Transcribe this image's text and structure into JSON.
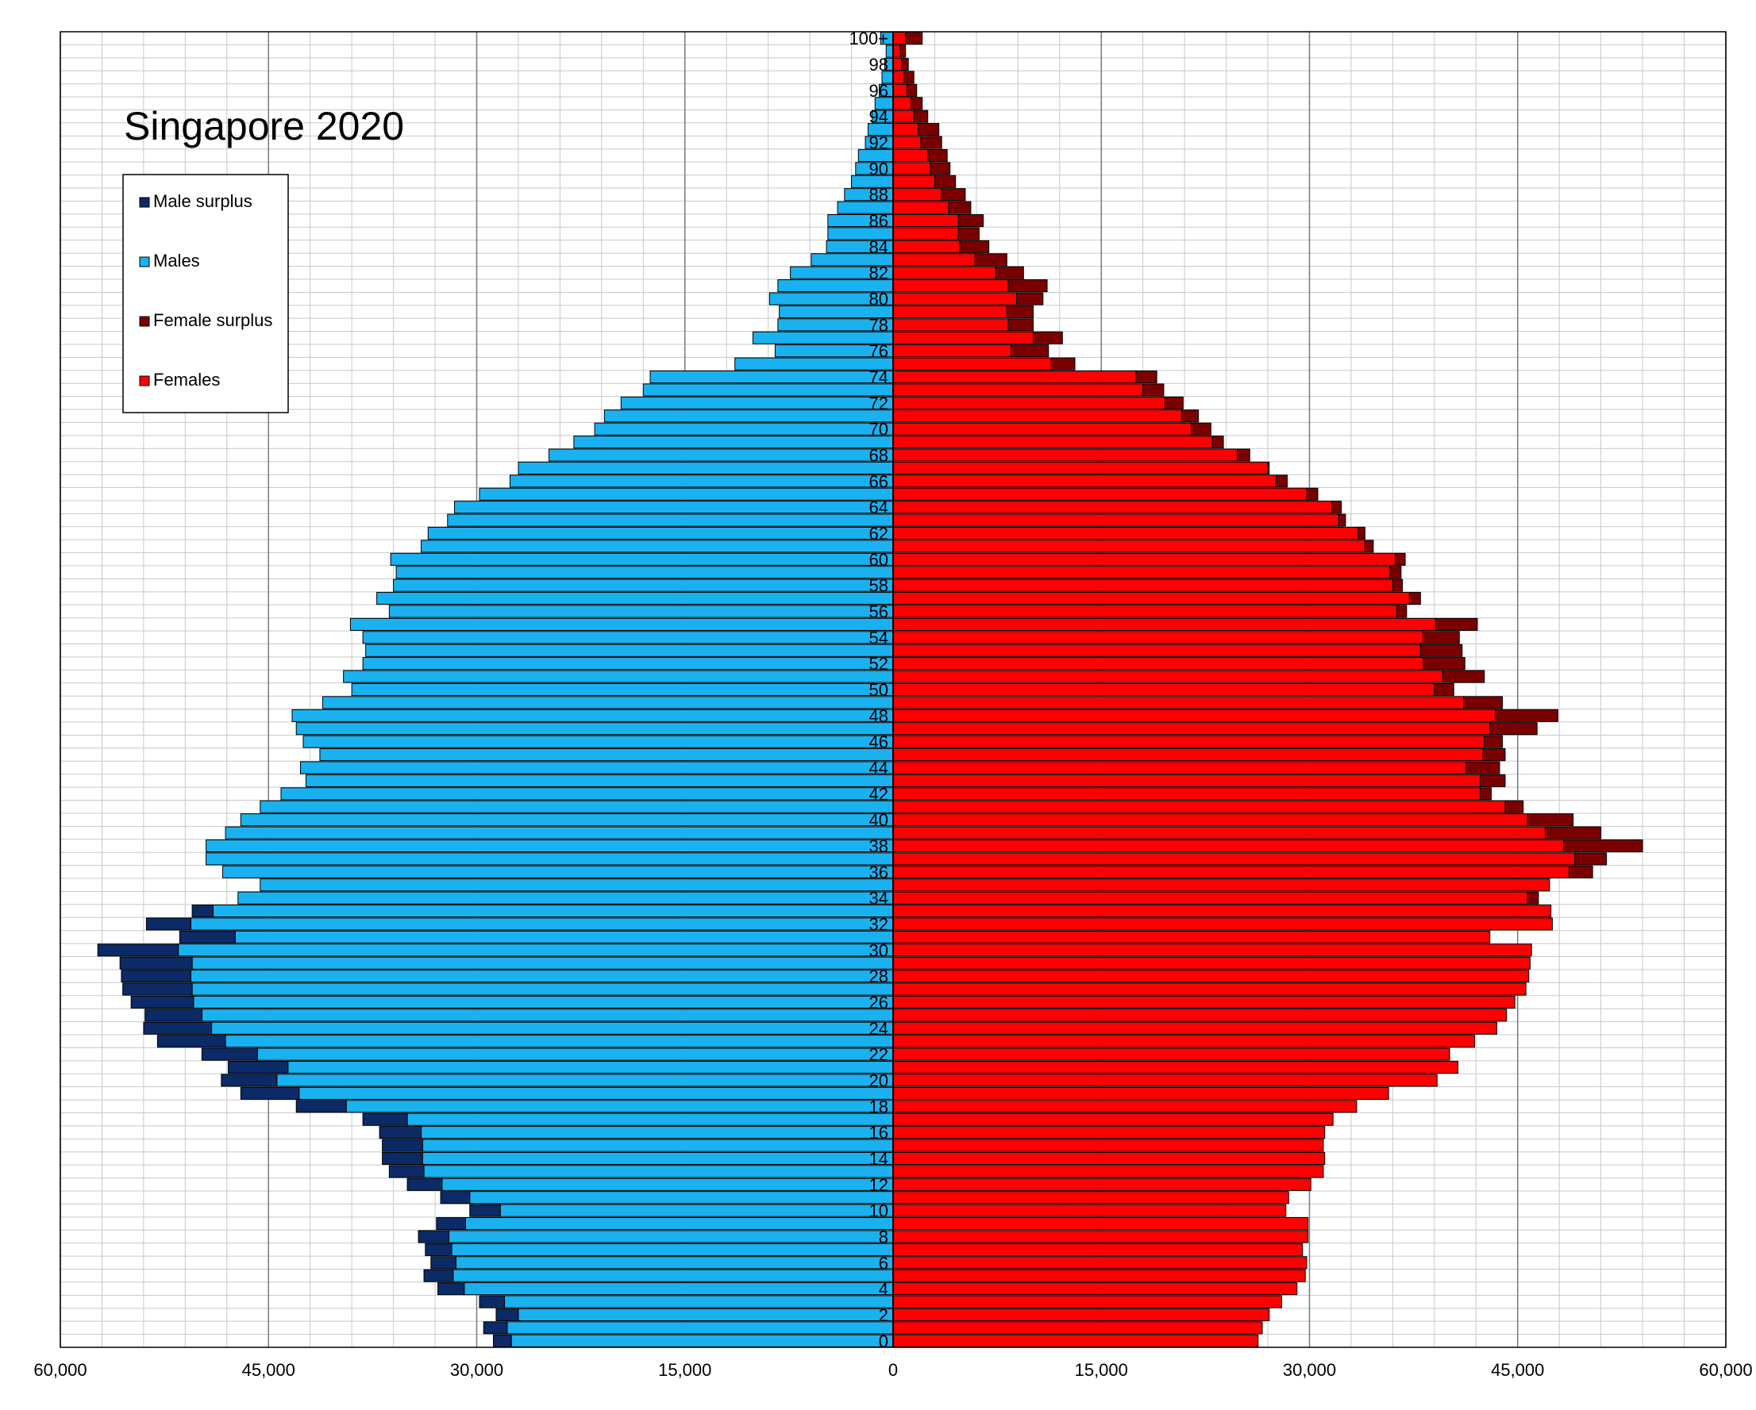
{
  "chart_data": {
    "type": "bar",
    "orientation": "horizontal-population-pyramid",
    "title": "Singapore 2020",
    "xlabel": "",
    "ylabel": "",
    "xlim": [
      -60000,
      60000
    ],
    "x_ticks": [
      "60,000",
      "45,000",
      "30,000",
      "15,000",
      "0",
      "15,000",
      "30,000",
      "45,000",
      "60,000"
    ],
    "grid": true,
    "legend_position": "top-left",
    "legend": [
      "Male surplus",
      "Males",
      "Female surplus",
      "Females"
    ],
    "colors": {
      "male_surplus": "#0b2a66",
      "males": "#1ab1f0",
      "female_surplus": "#7a0000",
      "females": "#ff0000"
    },
    "age_labels": [
      "100+",
      "98",
      "96",
      "94",
      "92",
      "90",
      "88",
      "86",
      "84",
      "82",
      "80",
      "78",
      "76",
      "74",
      "72",
      "70",
      "68",
      "66",
      "64",
      "62",
      "60",
      "58",
      "56",
      "54",
      "52",
      "50",
      "48",
      "46",
      "44",
      "42",
      "40",
      "38",
      "36",
      "34",
      "32",
      "30",
      "28",
      "26",
      "24",
      "22",
      "20",
      "18",
      "16",
      "14",
      "12",
      "10",
      "8",
      "6",
      "4",
      "2",
      "0"
    ],
    "ages": [
      "0",
      "1",
      "2",
      "3",
      "4",
      "5",
      "6",
      "7",
      "8",
      "9",
      "10",
      "11",
      "12",
      "13",
      "14",
      "15",
      "16",
      "17",
      "18",
      "19",
      "20",
      "21",
      "22",
      "23",
      "24",
      "25",
      "26",
      "27",
      "28",
      "29",
      "30",
      "31",
      "32",
      "33",
      "34",
      "35",
      "36",
      "37",
      "38",
      "39",
      "40",
      "41",
      "42",
      "43",
      "44",
      "45",
      "46",
      "47",
      "48",
      "49",
      "50",
      "51",
      "52",
      "53",
      "54",
      "55",
      "56",
      "57",
      "58",
      "59",
      "60",
      "61",
      "62",
      "63",
      "64",
      "65",
      "66",
      "67",
      "68",
      "69",
      "70",
      "71",
      "72",
      "73",
      "74",
      "75",
      "76",
      "77",
      "78",
      "79",
      "80",
      "81",
      "82",
      "83",
      "84",
      "85",
      "86",
      "87",
      "88",
      "89",
      "90",
      "91",
      "92",
      "93",
      "94",
      "95",
      "96",
      "97",
      "98",
      "99",
      "100+"
    ],
    "series": [
      {
        "name": "Males",
        "values": [
          27500,
          27800,
          27000,
          28000,
          30900,
          31700,
          31500,
          31800,
          32000,
          30800,
          28300,
          30500,
          32500,
          33800,
          33900,
          33900,
          34000,
          35000,
          39400,
          42800,
          44400,
          43600,
          45800,
          48100,
          49100,
          49800,
          50400,
          50500,
          50600,
          50500,
          51500,
          47400,
          50600,
          49000,
          47200,
          45600,
          48300,
          49500,
          49500,
          48100,
          47000,
          45600,
          44100,
          42300,
          42700,
          41300,
          42500,
          43000,
          43300,
          41100,
          39000,
          39600,
          38200,
          38000,
          38200,
          39100,
          36300,
          37200,
          36000,
          35800,
          36200,
          34000,
          33500,
          32100,
          31600,
          29800,
          27600,
          27000,
          24800,
          23000,
          21500,
          20800,
          19600,
          18000,
          17500,
          11400,
          8500,
          10100,
          8300,
          8200,
          8900,
          8300,
          7400,
          5900,
          4800,
          4700,
          4700,
          4000,
          3500,
          3000,
          2700,
          2500,
          2000,
          1800,
          1500,
          1300,
          1000,
          800,
          600,
          500,
          900
        ],
        "male_surplus": [
          1300,
          1700,
          1600,
          1800,
          1900,
          2100,
          1800,
          1900,
          2200,
          2100,
          2200,
          2100,
          2500,
          2500,
          2900,
          2900,
          3000,
          3200,
          3600,
          4200,
          4000,
          4300,
          4000,
          4900,
          4900,
          4100,
          4500,
          5000,
          5000,
          5200,
          5800,
          4000,
          3200,
          1500,
          0,
          0,
          0,
          0,
          0,
          0,
          0,
          0,
          0,
          0,
          0,
          0,
          0,
          0,
          0,
          0,
          0,
          0,
          0,
          0,
          0,
          0,
          0,
          0,
          0,
          0,
          0,
          0,
          0,
          0,
          0,
          0,
          0,
          0,
          0,
          0,
          0,
          0,
          0,
          0,
          0,
          0,
          0,
          0,
          0,
          0,
          0,
          0,
          0,
          0,
          0,
          0,
          0,
          0,
          0,
          0,
          0,
          0,
          0,
          0,
          0,
          0,
          0,
          0,
          0,
          0,
          0
        ]
      },
      {
        "name": "Females",
        "values": [
          26300,
          26600,
          27100,
          28000,
          29100,
          29700,
          29800,
          29500,
          29900,
          29900,
          28300,
          28500,
          30100,
          31000,
          31100,
          31000,
          31100,
          31700,
          33400,
          35700,
          39200,
          40700,
          40100,
          41900,
          43500,
          44200,
          44800,
          45600,
          45800,
          45900,
          46000,
          43000,
          47500,
          47400,
          45700,
          47300,
          48700,
          49100,
          48300,
          47000,
          45700,
          44100,
          42300,
          42300,
          41300,
          42500,
          42600,
          43000,
          43400,
          41100,
          39000,
          39600,
          38200,
          38000,
          38200,
          39100,
          36300,
          37200,
          36000,
          35800,
          36200,
          34000,
          33500,
          32100,
          31600,
          29800,
          27600,
          27000,
          24800,
          23000,
          21500,
          20800,
          19600,
          18000,
          17500,
          11400,
          8500,
          10100,
          8300,
          8200,
          8900,
          8300,
          7400,
          5900,
          4800,
          4700,
          4700,
          4000,
          3500,
          3000,
          2700,
          2500,
          2000,
          1800,
          1500,
          1300,
          1000,
          800,
          600,
          500,
          900
        ],
        "female_surplus": [
          0,
          0,
          0,
          0,
          0,
          0,
          0,
          0,
          0,
          0,
          0,
          0,
          0,
          0,
          0,
          0,
          0,
          0,
          0,
          0,
          0,
          0,
          0,
          0,
          0,
          0,
          0,
          0,
          0,
          0,
          0,
          0,
          0,
          0,
          800,
          0,
          1700,
          2300,
          5700,
          4000,
          3300,
          1300,
          800,
          1800,
          2400,
          1600,
          1300,
          3400,
          4500,
          2800,
          1400,
          3000,
          3000,
          3000,
          2600,
          3000,
          700,
          800,
          700,
          800,
          700,
          600,
          500,
          500,
          700,
          800,
          800,
          100,
          900,
          800,
          1400,
          1200,
          1300,
          1500,
          1500,
          1700,
          2700,
          2100,
          1800,
          1900,
          1900,
          2800,
          2000,
          2300,
          2100,
          1500,
          1800,
          1600,
          1700,
          1500,
          1400,
          1400,
          1500,
          1500,
          1000,
          800,
          700,
          700,
          500,
          400,
          1200
        ]
      }
    ]
  }
}
